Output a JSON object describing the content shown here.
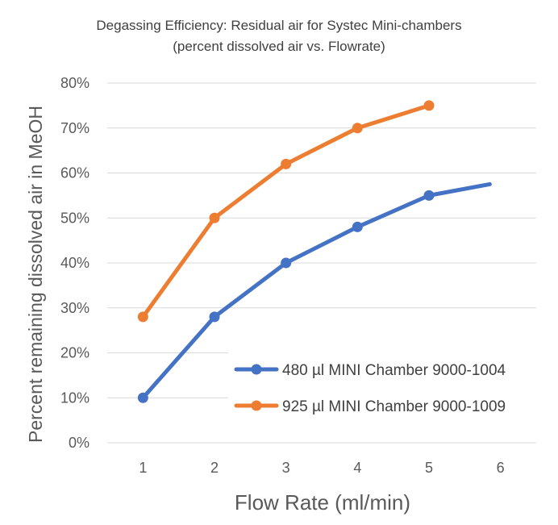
{
  "chart_data": {
    "type": "line",
    "title_line1": "Degassing Efficiency: Residual air for Systec Mini-chambers",
    "title_line2": "(percent dissolved air vs. Flowrate)",
    "xlabel": "Flow Rate (ml/min)",
    "ylabel": "Percent remaining dissolved air in MeOH",
    "x_ticks": [
      "1",
      "2",
      "3",
      "4",
      "5",
      "6"
    ],
    "y_ticks": [
      "0%",
      "10%",
      "20%",
      "30%",
      "40%",
      "50%",
      "60%",
      "70%",
      "80%"
    ],
    "xlim": [
      0.5,
      6.5
    ],
    "ylim": [
      0,
      80
    ],
    "grid": true,
    "legend_position": "bottom-right",
    "series": [
      {
        "name": "480 µl MINI Chamber 9000-1004",
        "color": "#4472c4",
        "x": [
          1,
          2,
          3,
          4,
          5
        ],
        "y": [
          10,
          28,
          40,
          48,
          55
        ],
        "line_extension": {
          "x": 5.85,
          "y": 57.5
        }
      },
      {
        "name": "925 µl MINI Chamber 9000-1009",
        "color": "#ed7d31",
        "x": [
          1,
          2,
          3,
          4,
          5
        ],
        "y": [
          28,
          50,
          62,
          70,
          75
        ],
        "line_extension": null
      }
    ]
  }
}
